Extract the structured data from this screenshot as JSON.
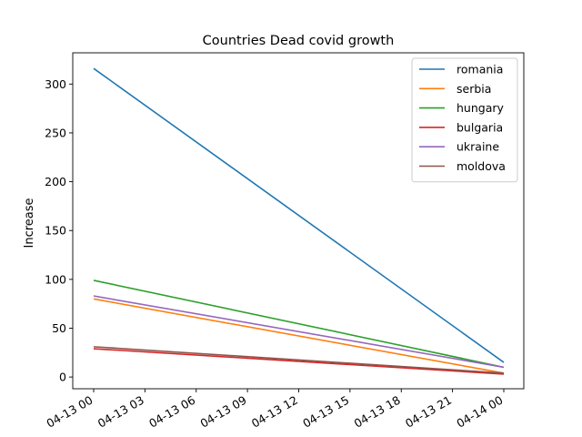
{
  "chart_data": {
    "type": "line",
    "title": "Countries Dead covid growth",
    "xlabel": "",
    "ylabel": "Increase",
    "x": [
      "04-13 00",
      "04-14 00"
    ],
    "x_ticks": [
      "04-13 00",
      "04-13 03",
      "04-13 06",
      "04-13 09",
      "04-13 12",
      "04-13 15",
      "04-13 18",
      "04-13 21",
      "04-14 00"
    ],
    "y_ticks": [
      0,
      50,
      100,
      150,
      200,
      250,
      300
    ],
    "ylim": [
      -12,
      332
    ],
    "grid": false,
    "legend_position": "top-right",
    "series": [
      {
        "name": "romania",
        "color": "#1f77b4",
        "values": [
          316,
          15
        ]
      },
      {
        "name": "serbia",
        "color": "#ff7f0e",
        "values": [
          80,
          4
        ]
      },
      {
        "name": "hungary",
        "color": "#2ca02c",
        "values": [
          99,
          10
        ]
      },
      {
        "name": "bulgaria",
        "color": "#d62728",
        "values": [
          29,
          3
        ]
      },
      {
        "name": "ukraine",
        "color": "#9467bd",
        "values": [
          83,
          10
        ]
      },
      {
        "name": "moldova",
        "color": "#8c564b",
        "values": [
          31,
          4
        ]
      }
    ]
  }
}
